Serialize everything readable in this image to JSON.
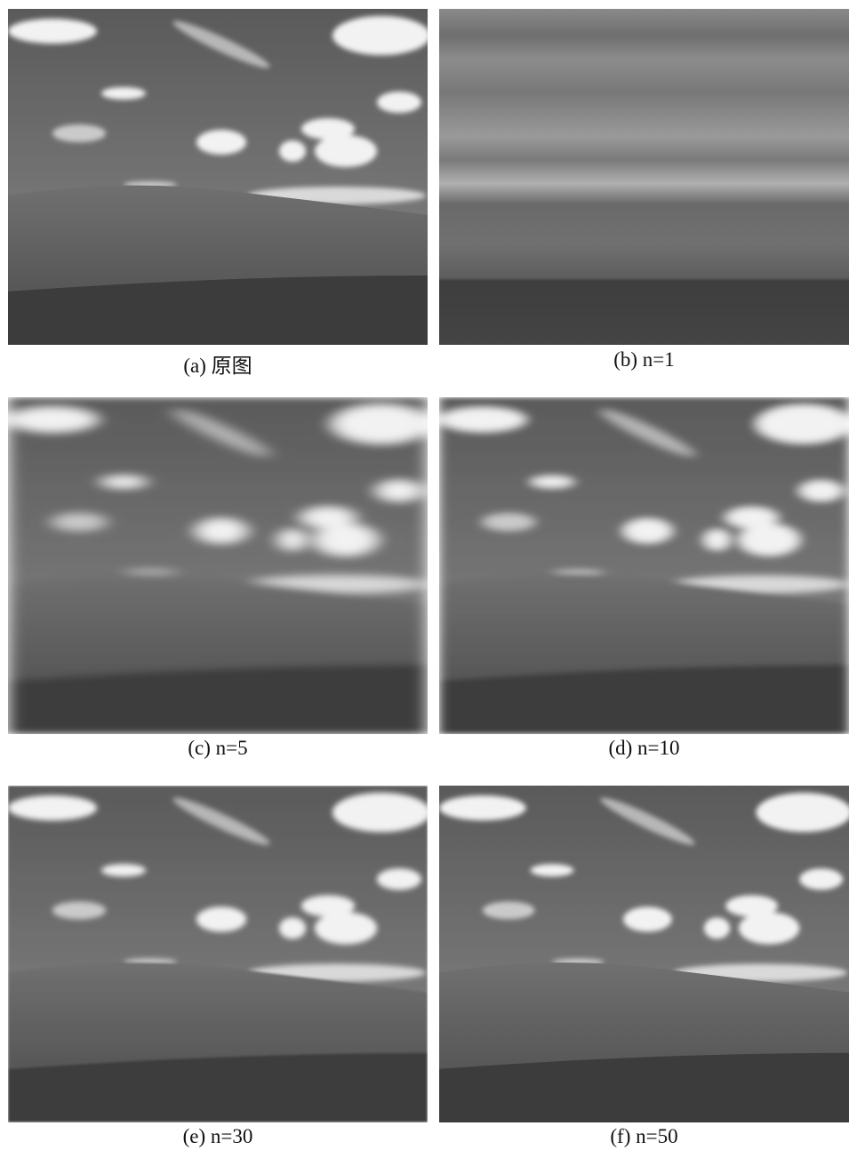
{
  "panels": [
    {
      "caption": "(a) 原图"
    },
    {
      "caption": "(b) n=1"
    },
    {
      "caption": "(c) n=5"
    },
    {
      "caption": "(d) n=10"
    },
    {
      "caption": "(e) n=30"
    },
    {
      "caption": "(f) n=50"
    }
  ]
}
